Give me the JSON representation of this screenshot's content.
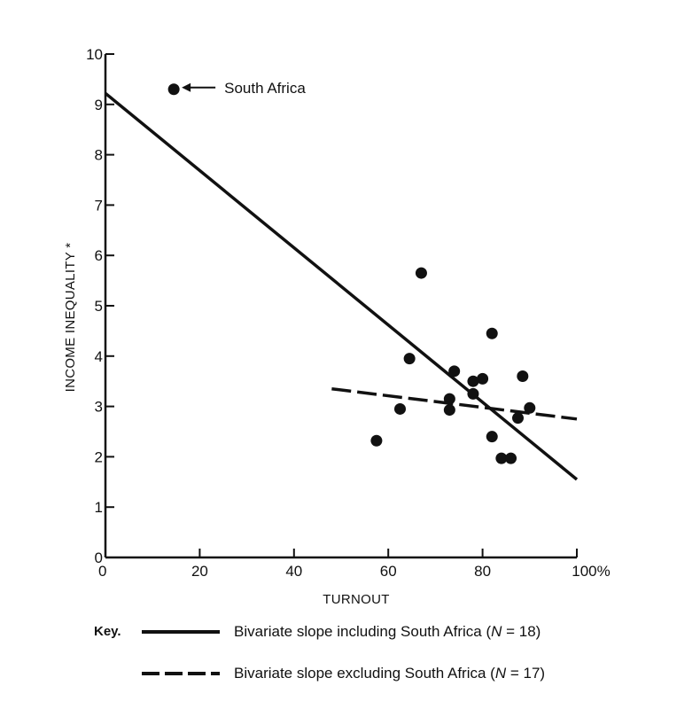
{
  "chart_data": {
    "type": "scatter",
    "xlabel": "TURNOUT",
    "ylabel": "INCOME INEQUALITY *",
    "xlim": [
      0,
      100
    ],
    "ylim": [
      0,
      10
    ],
    "x_ticks": [
      {
        "value": 0,
        "label": "0"
      },
      {
        "value": 20,
        "label": "20"
      },
      {
        "value": 40,
        "label": "40"
      },
      {
        "value": 60,
        "label": "60"
      },
      {
        "value": 80,
        "label": "80"
      },
      {
        "value": 100,
        "label": "100%"
      }
    ],
    "y_ticks": [
      0,
      1,
      2,
      3,
      4,
      5,
      6,
      7,
      8,
      9,
      10
    ],
    "points": [
      {
        "x": 14.5,
        "y": 9.3
      },
      {
        "x": 67.0,
        "y": 5.65
      },
      {
        "x": 82.0,
        "y": 4.45
      },
      {
        "x": 64.5,
        "y": 3.95
      },
      {
        "x": 74.0,
        "y": 3.7
      },
      {
        "x": 88.5,
        "y": 3.6
      },
      {
        "x": 80.0,
        "y": 3.55
      },
      {
        "x": 78.0,
        "y": 3.5
      },
      {
        "x": 78.0,
        "y": 3.25
      },
      {
        "x": 73.0,
        "y": 3.15
      },
      {
        "x": 62.5,
        "y": 2.95
      },
      {
        "x": 73.0,
        "y": 2.93
      },
      {
        "x": 90.0,
        "y": 2.97
      },
      {
        "x": 87.5,
        "y": 2.77
      },
      {
        "x": 57.5,
        "y": 2.32
      },
      {
        "x": 82.0,
        "y": 2.4
      },
      {
        "x": 84.0,
        "y": 1.97
      },
      {
        "x": 86.0,
        "y": 1.97
      }
    ],
    "annotations": [
      {
        "text": "South Africa",
        "x": 14.5,
        "y": 9.3
      }
    ],
    "fit_lines": [
      {
        "style": "solid",
        "from": [
          0,
          9.22
        ],
        "to": [
          100,
          1.55
        ]
      },
      {
        "style": "dashed",
        "from": [
          48,
          3.35
        ],
        "to": [
          100,
          2.75
        ]
      }
    ]
  },
  "key": {
    "label": "Key.",
    "entries": [
      {
        "style": "solid",
        "text_pre": "Bivariate slope including South Africa (",
        "n_symbol": "N",
        "text_post": " = 18)"
      },
      {
        "style": "dashed",
        "text_pre": "Bivariate slope excluding South Africa (",
        "n_symbol": "N",
        "text_post": " = 17)"
      }
    ]
  }
}
